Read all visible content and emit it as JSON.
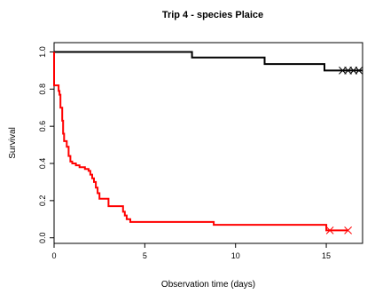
{
  "chart_data": {
    "type": "line",
    "title": "Trip  4 - species  Plaice",
    "xlabel": "Observation time (days)",
    "ylabel": "Survival",
    "xlim": [
      0,
      17.0
    ],
    "ylim": [
      -0.03,
      1.05
    ],
    "xticks": [
      0,
      5,
      10,
      15
    ],
    "yticks": [
      0.0,
      0.2,
      0.4,
      0.6,
      0.8,
      1.0
    ],
    "grid": false,
    "legend": "none",
    "series": [
      {
        "color": "#000000",
        "line_type": "step",
        "points": [
          [
            0,
            1.0
          ],
          [
            7.6,
            1.0
          ],
          [
            7.6,
            0.97
          ],
          [
            11.6,
            0.97
          ],
          [
            11.6,
            0.935
          ],
          [
            14.9,
            0.935
          ],
          [
            14.9,
            0.9
          ],
          [
            17.0,
            0.9
          ]
        ],
        "censored": [
          15.9,
          16.2,
          16.5,
          16.8
        ]
      },
      {
        "color": "#ff0000",
        "line_type": "step",
        "points": [
          [
            0,
            1.0
          ],
          [
            0,
            0.82
          ],
          [
            0.25,
            0.82
          ],
          [
            0.25,
            0.79
          ],
          [
            0.3,
            0.79
          ],
          [
            0.3,
            0.77
          ],
          [
            0.35,
            0.77
          ],
          [
            0.35,
            0.7
          ],
          [
            0.45,
            0.7
          ],
          [
            0.45,
            0.63
          ],
          [
            0.5,
            0.63
          ],
          [
            0.5,
            0.56
          ],
          [
            0.55,
            0.56
          ],
          [
            0.55,
            0.52
          ],
          [
            0.7,
            0.52
          ],
          [
            0.7,
            0.49
          ],
          [
            0.8,
            0.49
          ],
          [
            0.8,
            0.44
          ],
          [
            0.9,
            0.44
          ],
          [
            0.9,
            0.41
          ],
          [
            1.0,
            0.41
          ],
          [
            1.0,
            0.4
          ],
          [
            1.2,
            0.4
          ],
          [
            1.2,
            0.39
          ],
          [
            1.4,
            0.39
          ],
          [
            1.4,
            0.38
          ],
          [
            1.7,
            0.38
          ],
          [
            1.7,
            0.37
          ],
          [
            1.9,
            0.37
          ],
          [
            1.9,
            0.36
          ],
          [
            2.0,
            0.36
          ],
          [
            2.0,
            0.34
          ],
          [
            2.1,
            0.34
          ],
          [
            2.1,
            0.32
          ],
          [
            2.2,
            0.32
          ],
          [
            2.2,
            0.3
          ],
          [
            2.3,
            0.3
          ],
          [
            2.3,
            0.27
          ],
          [
            2.4,
            0.27
          ],
          [
            2.4,
            0.24
          ],
          [
            2.5,
            0.24
          ],
          [
            2.5,
            0.21
          ],
          [
            3.0,
            0.21
          ],
          [
            3.0,
            0.17
          ],
          [
            3.8,
            0.17
          ],
          [
            3.8,
            0.14
          ],
          [
            3.9,
            0.14
          ],
          [
            3.9,
            0.12
          ],
          [
            4.0,
            0.12
          ],
          [
            4.0,
            0.1
          ],
          [
            4.2,
            0.1
          ],
          [
            4.2,
            0.085
          ],
          [
            8.8,
            0.085
          ],
          [
            8.8,
            0.07
          ],
          [
            15.0,
            0.07
          ],
          [
            15.0,
            0.04
          ],
          [
            16.2,
            0.04
          ]
        ],
        "censored": [
          15.2,
          16.2
        ]
      }
    ]
  }
}
